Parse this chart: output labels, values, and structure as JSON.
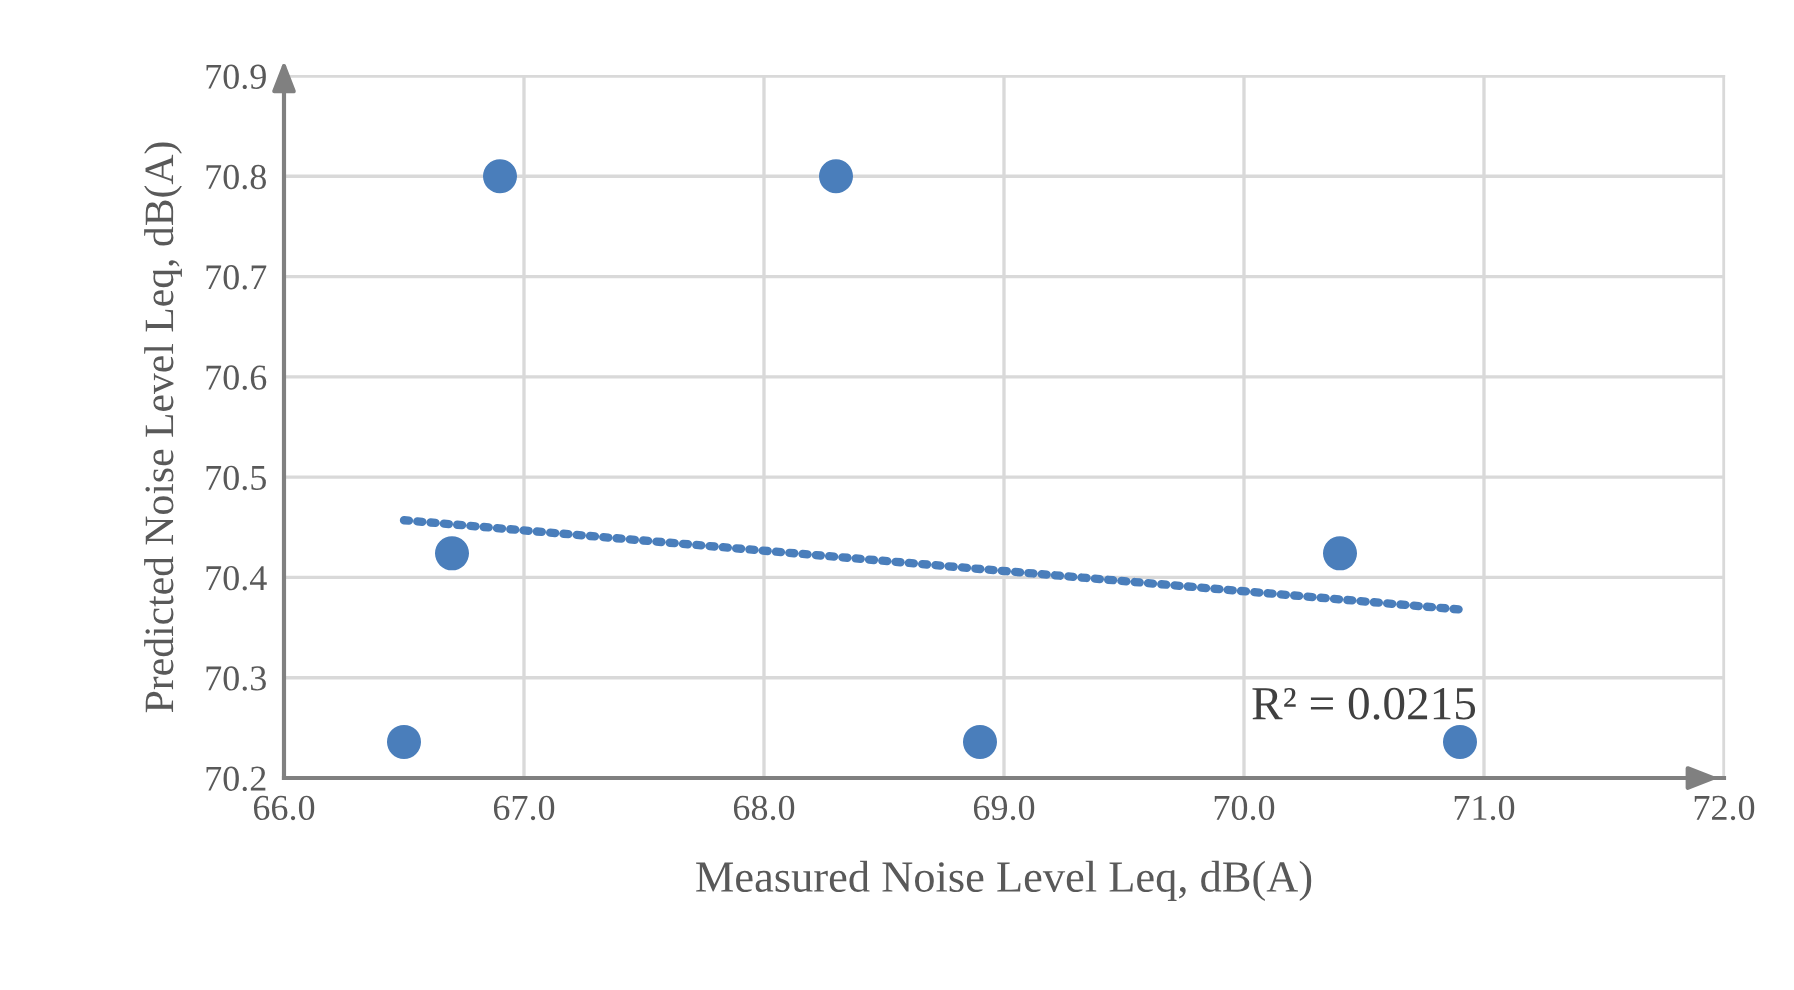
{
  "chart_data": {
    "type": "scatter",
    "xlabel": "Measured Noise Level Leq, dB(A)",
    "ylabel": "Predicted Noise Level Leq, dB(A)",
    "series": [
      {
        "color": "#4a7ebb",
        "x": [
          66.5,
          66.7,
          66.9,
          68.3,
          68.9,
          70.4,
          70.9
        ],
        "values": [
          70.236,
          70.424,
          70.8,
          70.8,
          70.236,
          70.424,
          70.236
        ],
        "marker": "circle"
      },
      {
        "type": "line",
        "color": "#4a7ebb",
        "x": [
          66.5,
          70.9
        ],
        "values": [
          70.457,
          70.368
        ],
        "line_style": "dotted",
        "marker": "none"
      }
    ],
    "annotations": [
      "R² = 0.0215"
    ],
    "xlim": [
      66.0,
      72.0
    ],
    "ylim": [
      70.2,
      70.9
    ],
    "xticks": [
      {
        "value": 66,
        "label": "66.0"
      },
      {
        "value": 67,
        "label": "67.0"
      },
      {
        "value": 68,
        "label": "68.0"
      },
      {
        "value": 69,
        "label": "69.0"
      },
      {
        "value": 70,
        "label": "70.0"
      },
      {
        "value": 71,
        "label": "71.0"
      },
      {
        "value": 72,
        "label": "72.0"
      }
    ],
    "yticks": [
      70.2,
      70.3,
      70.4,
      70.5,
      70.6,
      70.7,
      70.8,
      70.9
    ],
    "grid": true,
    "legend": false
  }
}
